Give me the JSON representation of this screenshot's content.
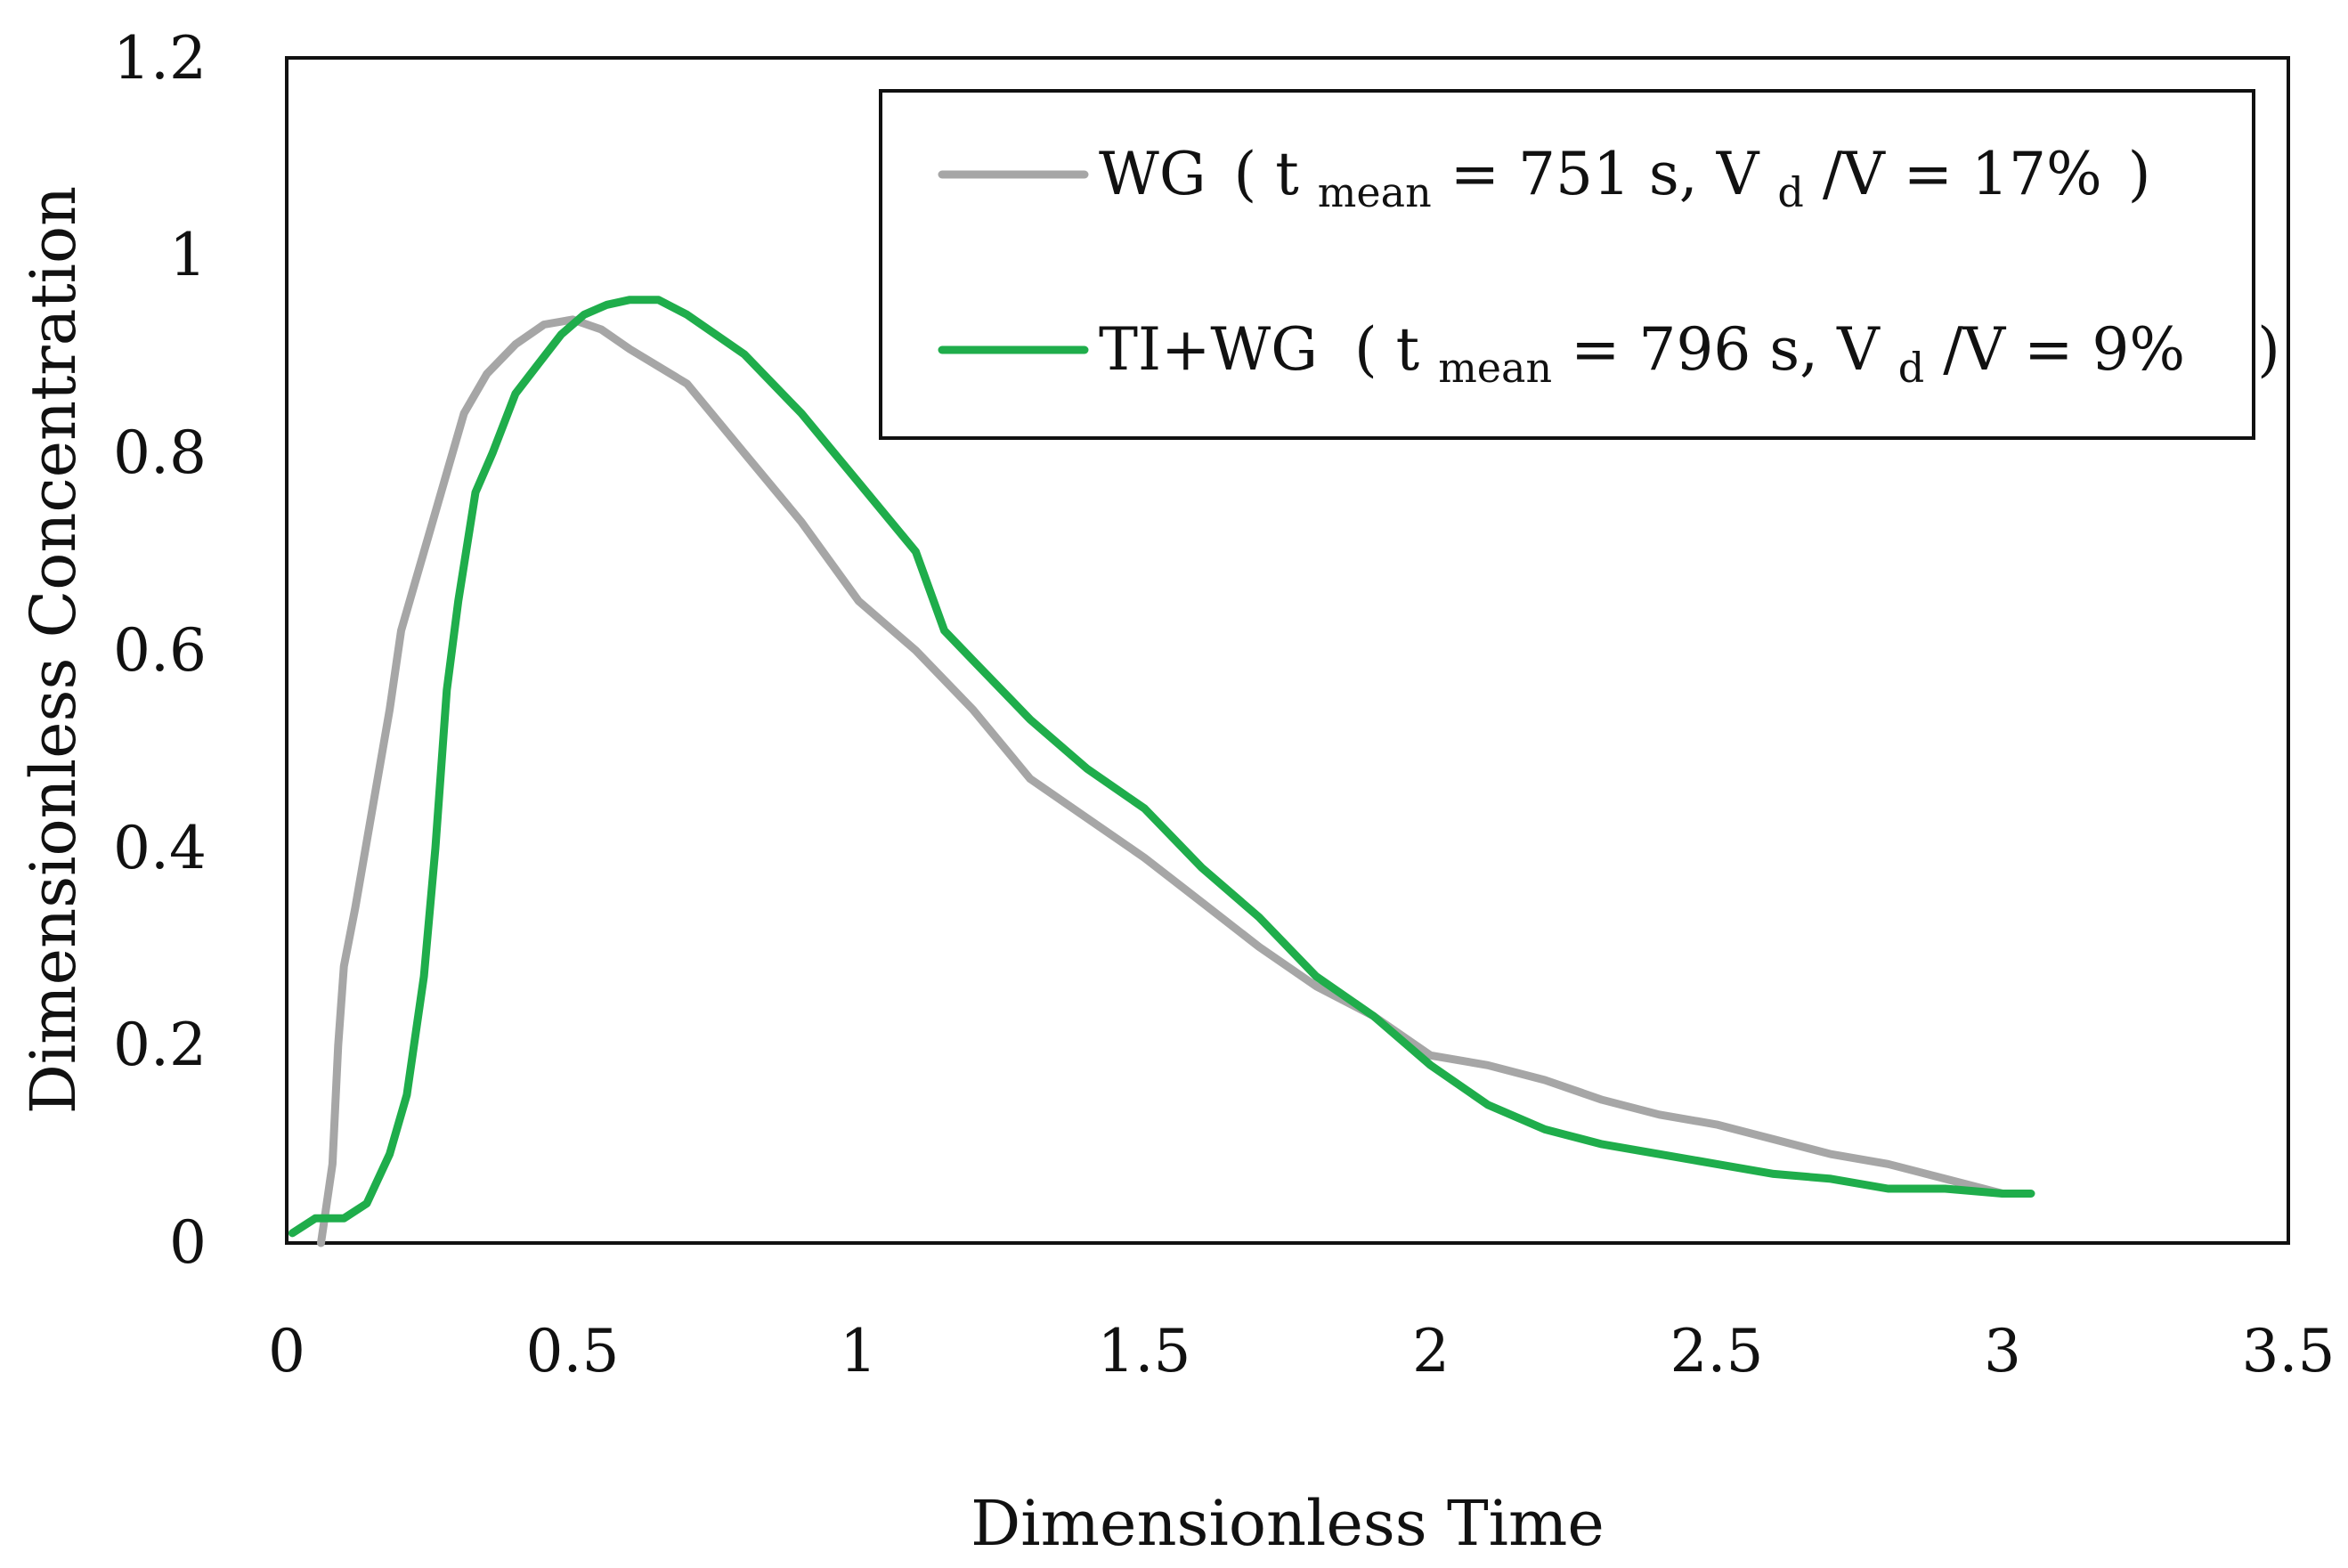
{
  "chart_data": {
    "type": "line",
    "xlabel": "Dimensionless Time",
    "ylabel": "Dimensionless Concentration",
    "xlim": [
      0,
      3.5
    ],
    "ylim": [
      0,
      1.2
    ],
    "xticks": [
      "0",
      "0.5",
      "1",
      "1.5",
      "2",
      "2.5",
      "3",
      "3.5"
    ],
    "yticks": [
      "0",
      "0.2",
      "0.4",
      "0.6",
      "0.8",
      "1",
      "1.2"
    ],
    "grid": false,
    "legend_position": "top-right",
    "series": [
      {
        "name": "WG",
        "color": "#a6a6a6",
        "legend": {
          "name": "WG",
          "open": "(",
          "t": "t",
          "sub": "mean",
          "t_eq": " = 751 s, V",
          "vd_sub": "d",
          "v_rest": "/V = 17%",
          "close": ")"
        },
        "x": [
          0.06,
          0.08,
          0.09,
          0.1,
          0.12,
          0.15,
          0.18,
          0.2,
          0.22,
          0.25,
          0.28,
          0.31,
          0.35,
          0.4,
          0.45,
          0.5,
          0.55,
          0.6,
          0.7,
          0.8,
          0.9,
          1.0,
          1.1,
          1.2,
          1.3,
          1.4,
          1.5,
          1.6,
          1.7,
          1.8,
          1.9,
          2.0,
          2.1,
          2.2,
          2.3,
          2.4,
          2.5,
          2.6,
          2.7,
          2.8,
          2.9,
          3.0
        ],
        "y": [
          0.0,
          0.08,
          0.2,
          0.28,
          0.34,
          0.44,
          0.54,
          0.62,
          0.66,
          0.72,
          0.78,
          0.84,
          0.88,
          0.91,
          0.93,
          0.935,
          0.925,
          0.905,
          0.87,
          0.8,
          0.73,
          0.65,
          0.6,
          0.54,
          0.47,
          0.43,
          0.39,
          0.345,
          0.3,
          0.26,
          0.23,
          0.19,
          0.18,
          0.165,
          0.145,
          0.13,
          0.12,
          0.105,
          0.09,
          0.08,
          0.065,
          0.05
        ]
      },
      {
        "name": "TI+WG",
        "color": "#1fad4b",
        "legend": {
          "name": "TI+WG",
          "open": "(",
          "t": "t",
          "sub": "mean",
          "t_eq": " = 796 s, V",
          "vd_sub": "d",
          "v_rest": "/V = 9%",
          "close": ")"
        },
        "x": [
          0.01,
          0.05,
          0.1,
          0.14,
          0.18,
          0.21,
          0.24,
          0.26,
          0.28,
          0.3,
          0.33,
          0.36,
          0.4,
          0.44,
          0.48,
          0.52,
          0.56,
          0.6,
          0.65,
          0.7,
          0.8,
          0.9,
          1.0,
          1.1,
          1.15,
          1.2,
          1.3,
          1.4,
          1.5,
          1.6,
          1.7,
          1.8,
          1.9,
          2.0,
          2.1,
          2.2,
          2.3,
          2.4,
          2.5,
          2.6,
          2.7,
          2.8,
          2.9,
          3.0,
          3.05
        ],
        "y": [
          0.01,
          0.025,
          0.025,
          0.04,
          0.09,
          0.15,
          0.27,
          0.4,
          0.56,
          0.65,
          0.76,
          0.8,
          0.86,
          0.89,
          0.92,
          0.94,
          0.95,
          0.955,
          0.955,
          0.94,
          0.9,
          0.84,
          0.77,
          0.7,
          0.62,
          0.59,
          0.53,
          0.48,
          0.44,
          0.38,
          0.33,
          0.27,
          0.23,
          0.18,
          0.14,
          0.115,
          0.1,
          0.09,
          0.08,
          0.07,
          0.065,
          0.055,
          0.055,
          0.05,
          0.05
        ]
      }
    ]
  }
}
